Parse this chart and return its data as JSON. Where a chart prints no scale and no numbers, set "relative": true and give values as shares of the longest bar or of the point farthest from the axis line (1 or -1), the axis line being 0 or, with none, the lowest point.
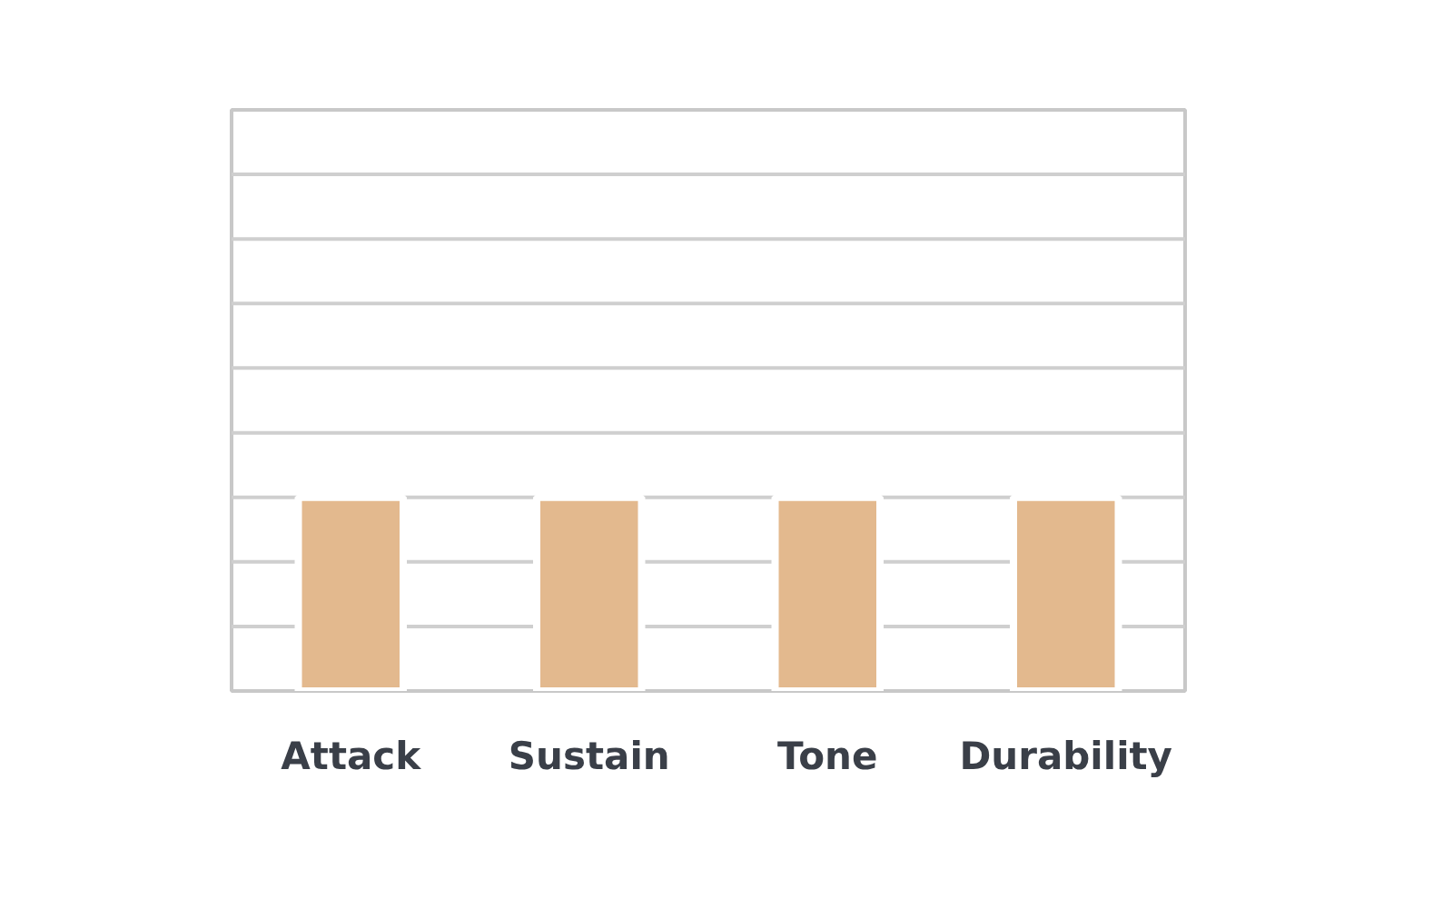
{
  "chart_data": {
    "type": "bar",
    "categories": [
      "Attack",
      "Sustain",
      "Tone",
      "Durability"
    ],
    "relative": true,
    "series": [
      {
        "color": "#e3b98e",
        "values": [
          1,
          1,
          1,
          1
        ]
      }
    ],
    "ref_lines": [
      {
        "axis": "y",
        "value": 0.333,
        "color": "#cfcfcf"
      },
      {
        "axis": "y",
        "value": 0.667,
        "color": "#cfcfcf"
      },
      {
        "axis": "y",
        "value": 1,
        "color": "#cfcfcf"
      },
      {
        "axis": "y",
        "value": 1.333,
        "color": "#cfcfcf"
      },
      {
        "axis": "y",
        "value": 1.667,
        "color": "#cfcfcf"
      },
      {
        "axis": "y",
        "value": 2,
        "color": "#cfcfcf"
      },
      {
        "axis": "y",
        "value": 2.333,
        "color": "#cfcfcf"
      },
      {
        "axis": "y",
        "value": 2.667,
        "color": "#cfcfcf"
      }
    ]
  }
}
